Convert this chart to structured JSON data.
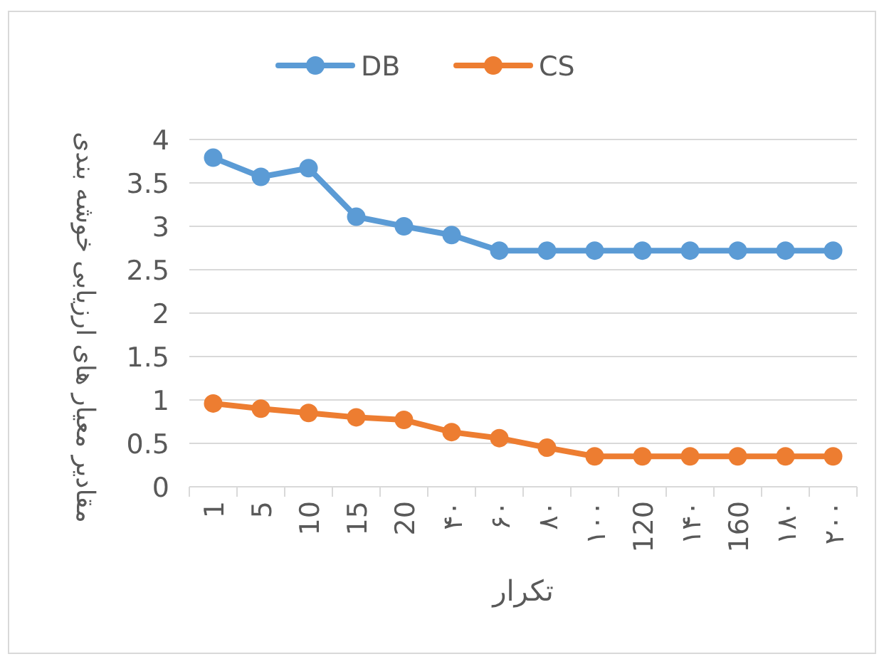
{
  "chart_data": {
    "type": "line",
    "xlabel": "تکرار",
    "ylabel": "مقادیر معیار های ارزیابی خوشه بندی",
    "categories": [
      "1",
      "5",
      "10",
      "15",
      "20",
      "۴۰",
      "۶۰",
      "۸۰",
      "۱۰۰",
      "120",
      "۱۴۰",
      "160",
      "۱۸۰",
      "۲۰۰"
    ],
    "series": [
      {
        "name": "DB",
        "color": "#5b9bd5",
        "values": [
          3.79,
          3.57,
          3.67,
          3.11,
          3.0,
          2.9,
          2.72,
          2.72,
          2.72,
          2.72,
          2.72,
          2.72,
          2.72,
          2.72
        ]
      },
      {
        "name": "CS",
        "color": "#ed7d31",
        "values": [
          0.96,
          0.9,
          0.85,
          0.8,
          0.77,
          0.63,
          0.56,
          0.45,
          0.35,
          0.35,
          0.35,
          0.35,
          0.35,
          0.35
        ]
      }
    ],
    "ylim": [
      0,
      4
    ],
    "yticks": [
      0,
      0.5,
      1,
      1.5,
      2,
      2.5,
      3,
      3.5,
      4
    ],
    "grid": "y",
    "legend": "top",
    "marker": "circle"
  }
}
